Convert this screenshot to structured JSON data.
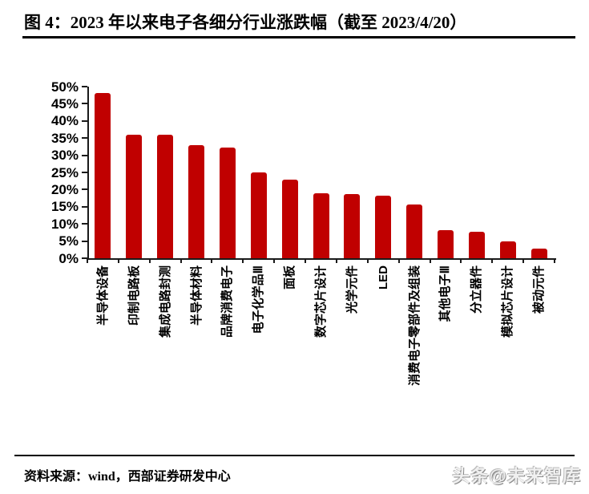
{
  "title": "图 4：2023 年以来电子各细分行业涨跌幅（截至 2023/4/20）",
  "footer": {
    "source": "资料来源：wind，西部证券研发中心"
  },
  "watermark": "头条@未来智库",
  "colors": {
    "bar": "#C00000",
    "axis": "#1a1a1a",
    "text": "#000000"
  },
  "chart_data": {
    "type": "bar",
    "title": "2023 年以来电子各细分行业涨跌幅（截至 2023/4/20）",
    "categories": [
      "半导体设备",
      "印制电路板",
      "集成电路封测",
      "半导体材料",
      "品牌消费电子",
      "电子化学品Ⅲ",
      "面板",
      "数字芯片设计",
      "光学元件",
      "LED",
      "消费电子零部件及组装",
      "其他电子Ⅲ",
      "分立器件",
      "模拟芯片设计",
      "被动元件"
    ],
    "values": [
      48.2,
      36.0,
      35.9,
      33.0,
      32.3,
      25.0,
      23.0,
      18.9,
      18.7,
      18.3,
      15.7,
      8.2,
      7.6,
      5.0,
      2.9
    ],
    "xlabel": "",
    "ylabel": "",
    "ylim": [
      0,
      50
    ],
    "yticks": [
      0,
      5,
      10,
      15,
      20,
      25,
      30,
      35,
      40,
      45,
      50
    ],
    "ytick_suffix": "%",
    "grid": false,
    "legend": null,
    "bar_color": "#C00000",
    "x_labels_rotation_deg": -90
  }
}
